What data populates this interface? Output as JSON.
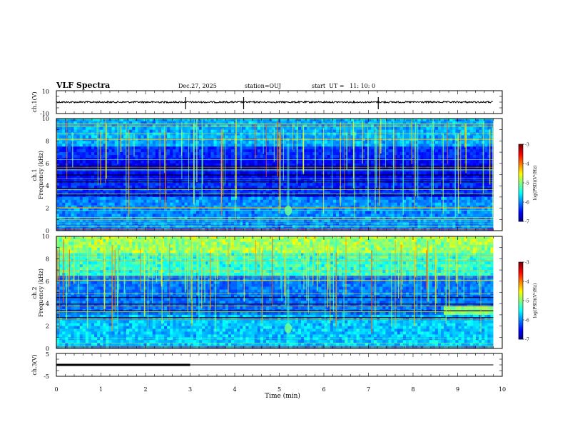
{
  "header": {
    "title": "VLF Spectra",
    "date": "Dec.27, 2025",
    "station": "station=OUJ",
    "start": "start  UT =   11: 10: 0"
  },
  "chart_data": [
    {
      "type": "line",
      "name": "ch1-waveform",
      "ylabel": "ch.1(V)",
      "ylim": [
        -10,
        10
      ],
      "y_ticks": [
        "10",
        "-10"
      ],
      "xlim": [
        0,
        10
      ],
      "baseline": 0,
      "spikes_x": [
        4.2,
        7.22,
        2.9
      ]
    },
    {
      "type": "heatmap",
      "name": "ch1-spectrogram",
      "ylabel": "ch.1\nFrequency (kHz)",
      "ylim": [
        0,
        10
      ],
      "y_ticks": [
        "0",
        "2",
        "4",
        "6",
        "8",
        "10"
      ],
      "xlim": [
        0,
        9.8
      ],
      "colorbar": {
        "label": "log(PSD)(V²/Hz)",
        "ticks": [
          "-3",
          "-4",
          "-5",
          "-6",
          "-7"
        ],
        "range": [
          -7,
          -3
        ]
      }
    },
    {
      "type": "heatmap",
      "name": "ch2-spectrogram",
      "ylabel": "ch.2\nFrequency (kHz)",
      "ylim": [
        0,
        10
      ],
      "y_ticks": [
        "0",
        "2",
        "4",
        "6",
        "8",
        "10"
      ],
      "xlim": [
        0,
        9.8
      ],
      "colorbar": {
        "label": "log(PSD)(V²/Hz)",
        "ticks": [
          "-3",
          "-4",
          "-5",
          "-6",
          "-7"
        ],
        "range": [
          -7,
          -3
        ]
      }
    },
    {
      "type": "line",
      "name": "ch3-signal",
      "ylabel": "ch.3(V)",
      "ylim": [
        -5,
        5
      ],
      "y_ticks": [
        "5",
        "-5"
      ],
      "xlim": [
        0,
        10
      ],
      "segments": [
        {
          "x": [
            0,
            3.0
          ],
          "y": 0,
          "thick": true
        },
        {
          "x": [
            3.0,
            9.8
          ],
          "y": 0,
          "thick": false
        }
      ]
    }
  ],
  "xaxis": {
    "label": "Time (min)",
    "ticks": [
      "0",
      "1",
      "2",
      "3",
      "4",
      "5",
      "6",
      "7",
      "8",
      "9",
      "10"
    ],
    "range": [
      0,
      10
    ]
  }
}
